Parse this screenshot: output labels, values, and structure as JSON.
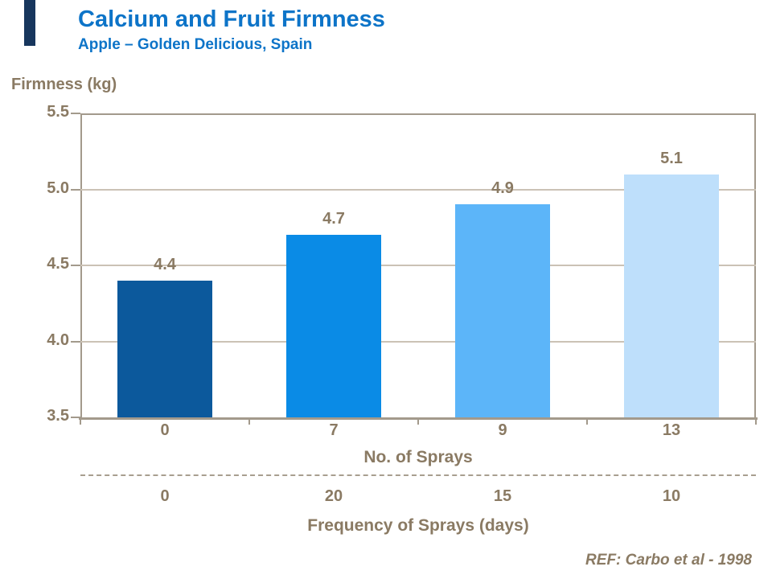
{
  "header": {
    "title": "Calcium and Fruit Firmness",
    "subtitle": "Apple – Golden Delicious, Spain"
  },
  "chart_data": {
    "type": "bar",
    "title": "Calcium and Fruit Firmness",
    "subtitle": "Apple – Golden Delicious, Spain",
    "ylabel": "Firmness (kg)",
    "xlabel": "No. of Sprays",
    "categories": [
      "0",
      "7",
      "9",
      "13"
    ],
    "values": [
      4.4,
      4.7,
      4.9,
      5.1
    ],
    "bar_value_labels": [
      "4.4",
      "4.7",
      "4.9",
      "5.1"
    ],
    "bar_colors": [
      "#0c599c",
      "#0a8be6",
      "#5cb5f9",
      "#bedffb"
    ],
    "ylim": [
      3.5,
      5.5
    ],
    "ytick_labels": [
      "5.5",
      "5.0",
      "4.5",
      "4.0",
      "3.5"
    ],
    "ytick_values": [
      5.5,
      5.0,
      4.5,
      4.0,
      3.5
    ],
    "gridline_values": [
      5.0,
      4.5,
      4.0
    ],
    "grid": "horizontal",
    "legend": "none",
    "secondary_axis": {
      "label": "Frequency of Sprays (days)",
      "values": [
        "0",
        "20",
        "15",
        "10"
      ]
    },
    "reference": "REF: Carbo et al - 1998"
  },
  "colors": {
    "accent_bar": "#17365d",
    "title_blue": "#0d74c8",
    "text_taupe": "#8a7a63",
    "axis_line": "#a39a8c",
    "gridline": "#cbc2b5"
  }
}
